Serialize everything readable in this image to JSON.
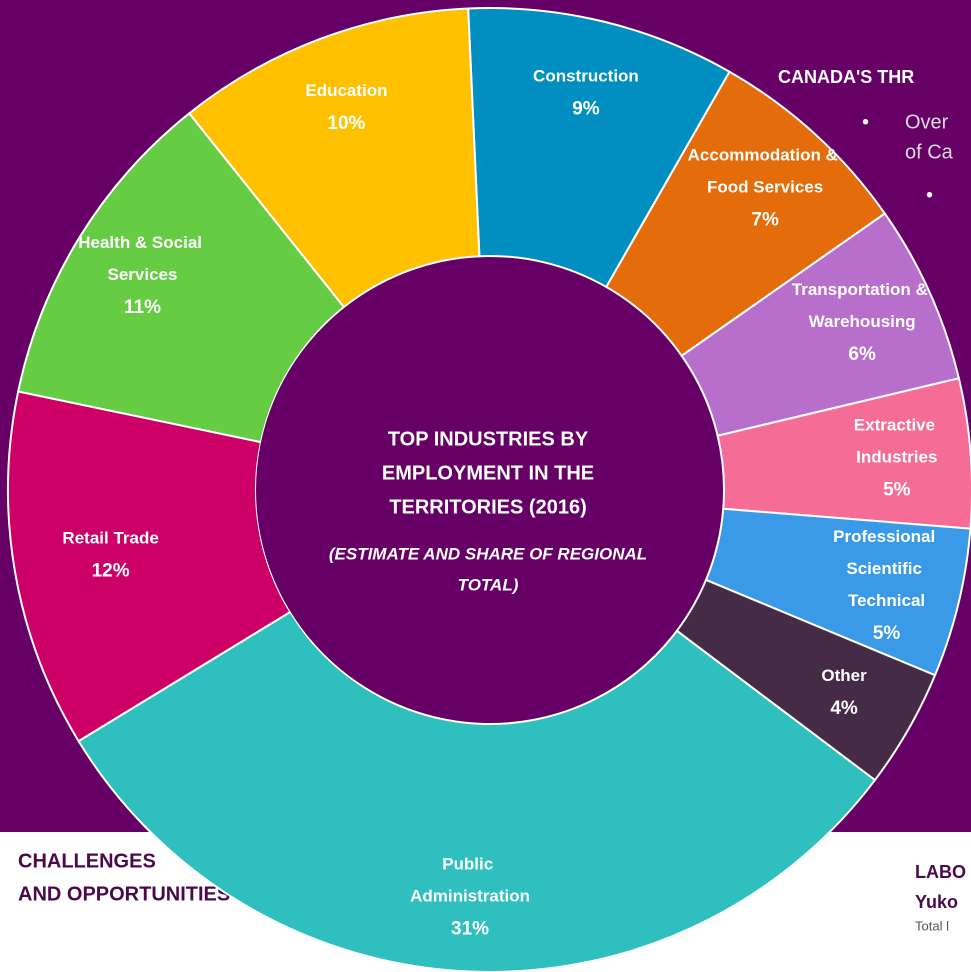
{
  "chart_data": {
    "type": "donut",
    "title_lines": [
      "TOP INDUSTRIES BY",
      "EMPLOYMENT IN THE",
      "TERRITORIES (2016)"
    ],
    "subtitle_lines": [
      "(ESTIMATE AND SHARE OF REGIONAL",
      "TOTAL)"
    ],
    "categories": [
      "Construction",
      "Accommodation & Food Services",
      "Transportation & Warehousing",
      "Extractive Industries",
      "Professional Scientific Technical",
      "Other",
      "Public Administration",
      "Retail Trade",
      "Health & Social Services",
      "Education"
    ],
    "values": [
      9,
      7,
      6,
      5,
      5,
      4,
      31,
      12,
      11,
      10
    ],
    "value_labels": [
      "9%",
      "7%",
      "6%",
      "5%",
      "5%",
      "4%",
      "31%",
      "12%",
      "11%",
      "10%"
    ],
    "colors": [
      "#008fc0",
      "#e46c0a",
      "#b86fcb",
      "#f56c96",
      "#3a9ae8",
      "#452b45",
      "#2ebfbe",
      "#cc0066",
      "#66cc44",
      "#ffc000"
    ]
  },
  "page": {
    "top_heading": "CANADA'S THR",
    "bullet": "•",
    "bullet_lines": [
      "Over",
      "of Ca"
    ],
    "bottom_left": [
      "CHALLENGES",
      "AND OPPORTUNITIES"
    ],
    "bottom_right": [
      "LABO",
      "Yuko",
      "Total l"
    ]
  }
}
